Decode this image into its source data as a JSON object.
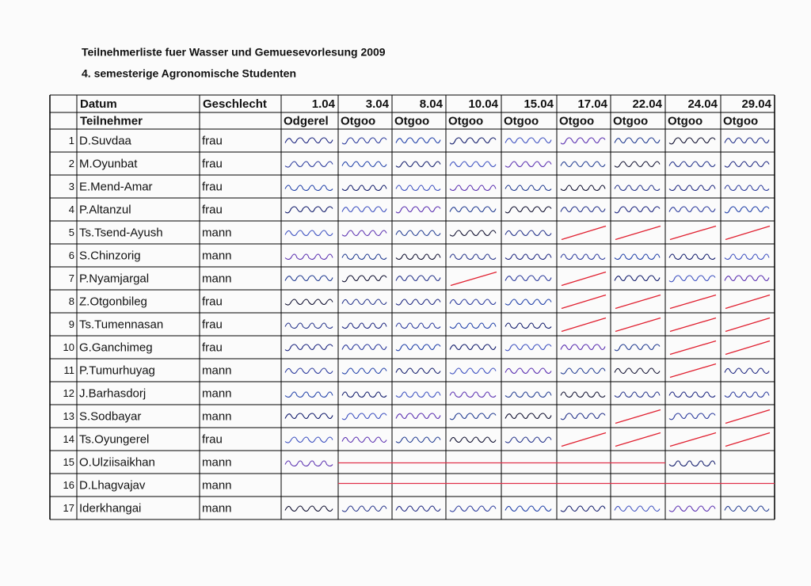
{
  "header": {
    "title": "Teilnehmerliste fuer Wasser und Gemuesevorlesung 2009",
    "subtitle": "4. semesterige Agronomische Studenten"
  },
  "table": {
    "col_labels": [
      "Datum",
      "Geschlecht"
    ],
    "dates": [
      "1.04",
      "3.04",
      "8.04",
      "10.04",
      "15.04",
      "17.04",
      "22.04",
      "24.04",
      "29.04"
    ],
    "participant_label": "Teilnehmer",
    "lecturers": [
      "Odgerel",
      "Otgoo",
      "Otgoo",
      "Otgoo",
      "Otgoo",
      "Otgoo",
      "Otgoo",
      "Otgoo",
      "Otgoo"
    ],
    "rows": [
      [
        "1",
        "D.Suvdaa",
        "frau"
      ],
      [
        "2",
        "M.Oyunbat",
        "frau"
      ],
      [
        "3",
        "E.Mend-Amar",
        "frau"
      ],
      [
        "4",
        "P.Altanzul",
        "frau"
      ],
      [
        "5",
        "Ts.Tsend-Ayush",
        "mann"
      ],
      [
        "6",
        "S.Chinzorig",
        "mann"
      ],
      [
        "7",
        "P.Nyamjargal",
        "mann"
      ],
      [
        "8",
        "Z.Otgonbileg",
        "frau"
      ],
      [
        "9",
        "Ts.Tumennasan",
        "frau"
      ],
      [
        "10",
        "G.Ganchimeg",
        "frau"
      ],
      [
        "11",
        "P.Tumurhuyag",
        "mann"
      ],
      [
        "12",
        "J.Barhasdorj",
        "mann"
      ],
      [
        "13",
        "S.Sodbayar",
        "mann"
      ],
      [
        "14",
        "Ts.Oyungerel",
        "frau"
      ],
      [
        "15",
        "O.Ulziisaikhan",
        "mann"
      ],
      [
        "16",
        "D.Lhagvajav",
        "mann"
      ],
      [
        "17",
        "Iderkhangai",
        "mann"
      ]
    ]
  }
}
